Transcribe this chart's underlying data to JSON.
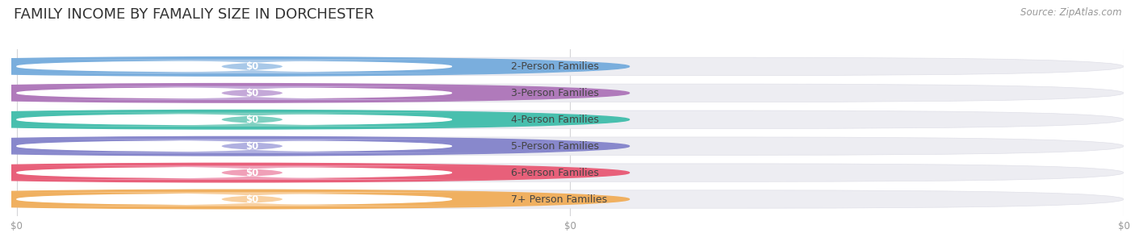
{
  "title": "FAMILY INCOME BY FAMALIY SIZE IN DORCHESTER",
  "source_text": "Source: ZipAtlas.com",
  "categories": [
    "2-Person Families",
    "3-Person Families",
    "4-Person Families",
    "5-Person Families",
    "6-Person Families",
    "7+ Person Families"
  ],
  "values": [
    0,
    0,
    0,
    0,
    0,
    0
  ],
  "bar_colors": [
    "#a8c8e8",
    "#c4a8d8",
    "#7dcfc0",
    "#b0b0e0",
    "#f0a0b8",
    "#f8d0a0"
  ],
  "dot_colors": [
    "#7aaedd",
    "#b07abb",
    "#48bfae",
    "#8888cc",
    "#e8607a",
    "#f0b060"
  ],
  "value_labels": [
    "$0",
    "$0",
    "$0",
    "$0",
    "$0",
    "$0"
  ],
  "x_tick_labels": [
    "$0",
    "$0",
    "$0"
  ],
  "bg_color": "#ffffff",
  "bar_bg_color": "#ededf2",
  "title_fontsize": 13,
  "label_fontsize": 9,
  "source_fontsize": 8.5,
  "tick_fontsize": 8.5
}
